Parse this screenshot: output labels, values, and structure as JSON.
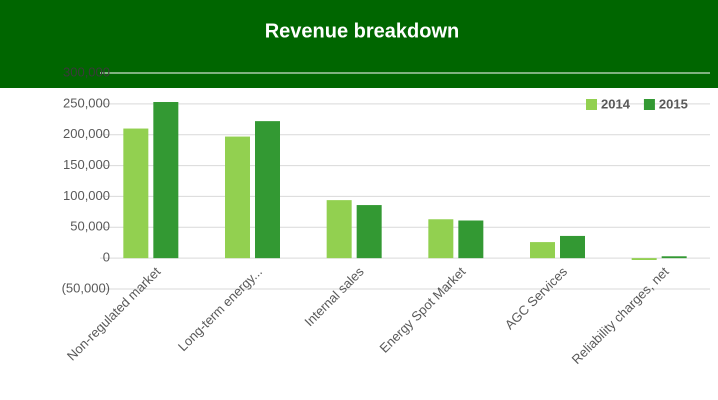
{
  "chart_data": {
    "type": "bar",
    "title": "Revenue breakdown",
    "categories": [
      "Non-regulated market",
      "Long-term energy...",
      "Internal sales",
      "Energy Spot Market",
      "AGC Services",
      "Reliability charges, net"
    ],
    "series": [
      {
        "name": "2014",
        "color": "#92d050",
        "values": [
          210000,
          197000,
          94000,
          63000,
          26000,
          -3000
        ]
      },
      {
        "name": "2015",
        "color": "#339933",
        "values": [
          253000,
          222000,
          86000,
          61000,
          36000,
          3000
        ]
      }
    ],
    "ylim": [
      -50000,
      300000
    ],
    "yticks": [
      {
        "value": -50000,
        "label": "(50,000)"
      },
      0,
      {
        "value": 50000,
        "label": "50,000"
      },
      {
        "value": 100000,
        "label": "100,000"
      },
      {
        "value": 150000,
        "label": "150,000"
      },
      {
        "value": 200000,
        "label": "200,000"
      },
      {
        "value": 250000,
        "label": "250,000"
      },
      {
        "value": 300000,
        "label": "300,000"
      }
    ],
    "grid": true,
    "legend": "top-right"
  }
}
